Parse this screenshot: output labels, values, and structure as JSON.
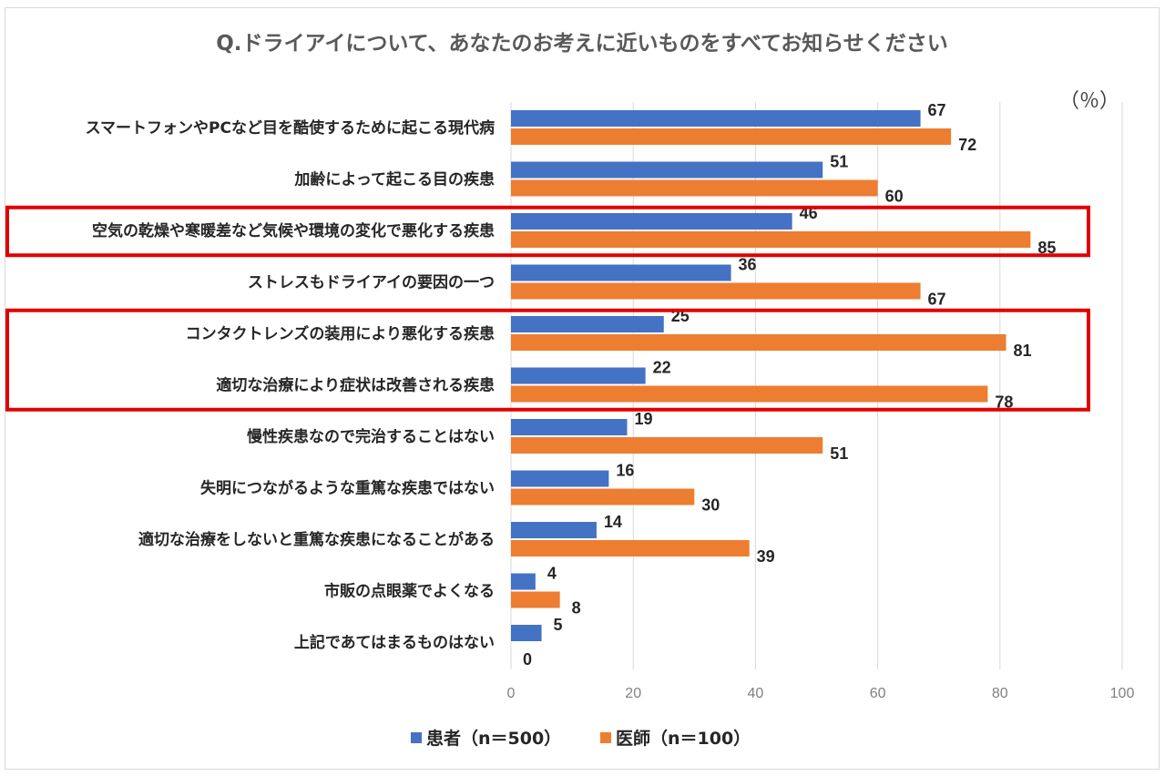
{
  "colors": {
    "series_patient": "#4472C4",
    "series_doctor": "#ED7D31",
    "highlight": "#E00000",
    "grid": "#D9D9D9"
  },
  "chart_data": {
    "type": "bar",
    "orientation": "horizontal",
    "title": "Q.ドライアイについて、あなたのお考えに近いものをすべてお知らせください",
    "unit_label": "（％）",
    "categories": [
      "スマートフォンやPCなど目を酷使するために起こる現代病",
      "加齢によって起こる目の疾患",
      "空気の乾燥や寒暖差など気候や環境の変化で悪化する疾患",
      "ストレスもドライアイの要因の一つ",
      "コンタクトレンズの装用により悪化する疾患",
      "適切な治療により症状は改善される疾患",
      "慢性疾患なので完治することはない",
      "失明につながるような重篤な疾患ではない",
      "適切な治療をしないと重篤な疾患になることがある",
      "市販の点眼薬でよくなる",
      "上記であてはまるものはない"
    ],
    "series": [
      {
        "name": "患者（n＝500）",
        "values": [
          67,
          51,
          46,
          36,
          25,
          22,
          19,
          16,
          14,
          4,
          5
        ]
      },
      {
        "name": "医師（n＝100）",
        "values": [
          72,
          60,
          85,
          67,
          81,
          78,
          51,
          30,
          39,
          8,
          0
        ]
      }
    ],
    "xlim": [
      0,
      100
    ],
    "xticks": [
      0,
      20,
      40,
      60,
      80,
      100
    ],
    "grid": true,
    "legend_position": "bottom-center",
    "highlight_groups": [
      [
        2
      ],
      [
        4,
        5
      ]
    ]
  }
}
